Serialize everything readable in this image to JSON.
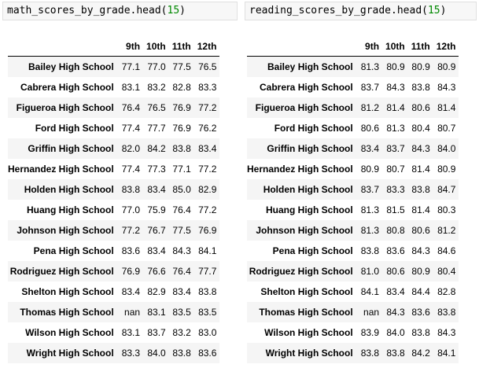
{
  "left": {
    "code_func": "math_scores_by_grade.head(",
    "code_arg": "15",
    "code_close": ")",
    "columns": [
      "9th",
      "10th",
      "11th",
      "12th"
    ],
    "rows": [
      {
        "school": "Bailey High School",
        "values": [
          "77.1",
          "77.0",
          "77.5",
          "76.5"
        ]
      },
      {
        "school": "Cabrera High School",
        "values": [
          "83.1",
          "83.2",
          "82.8",
          "83.3"
        ]
      },
      {
        "school": "Figueroa High School",
        "values": [
          "76.4",
          "76.5",
          "76.9",
          "77.2"
        ]
      },
      {
        "school": "Ford High School",
        "values": [
          "77.4",
          "77.7",
          "76.9",
          "76.2"
        ]
      },
      {
        "school": "Griffin High School",
        "values": [
          "82.0",
          "84.2",
          "83.8",
          "83.4"
        ]
      },
      {
        "school": "Hernandez High School",
        "values": [
          "77.4",
          "77.3",
          "77.1",
          "77.2"
        ]
      },
      {
        "school": "Holden High School",
        "values": [
          "83.8",
          "83.4",
          "85.0",
          "82.9"
        ]
      },
      {
        "school": "Huang High School",
        "values": [
          "77.0",
          "75.9",
          "76.4",
          "77.2"
        ]
      },
      {
        "school": "Johnson High School",
        "values": [
          "77.2",
          "76.7",
          "77.5",
          "76.9"
        ]
      },
      {
        "school": "Pena High School",
        "values": [
          "83.6",
          "83.4",
          "84.3",
          "84.1"
        ]
      },
      {
        "school": "Rodriguez High School",
        "values": [
          "76.9",
          "76.6",
          "76.4",
          "77.7"
        ]
      },
      {
        "school": "Shelton High School",
        "values": [
          "83.4",
          "82.9",
          "83.4",
          "83.8"
        ]
      },
      {
        "school": "Thomas High School",
        "values": [
          "nan",
          "83.1",
          "83.5",
          "83.5"
        ]
      },
      {
        "school": "Wilson High School",
        "values": [
          "83.1",
          "83.7",
          "83.2",
          "83.0"
        ]
      },
      {
        "school": "Wright High School",
        "values": [
          "83.3",
          "84.0",
          "83.8",
          "83.6"
        ]
      }
    ]
  },
  "right": {
    "code_func": "reading_scores_by_grade.head(",
    "code_arg": "15",
    "code_close": ")",
    "columns": [
      "9th",
      "10th",
      "11th",
      "12th"
    ],
    "rows": [
      {
        "school": "Bailey High School",
        "values": [
          "81.3",
          "80.9",
          "80.9",
          "80.9"
        ]
      },
      {
        "school": "Cabrera High School",
        "values": [
          "83.7",
          "84.3",
          "83.8",
          "84.3"
        ]
      },
      {
        "school": "Figueroa High School",
        "values": [
          "81.2",
          "81.4",
          "80.6",
          "81.4"
        ]
      },
      {
        "school": "Ford High School",
        "values": [
          "80.6",
          "81.3",
          "80.4",
          "80.7"
        ]
      },
      {
        "school": "Griffin High School",
        "values": [
          "83.4",
          "83.7",
          "84.3",
          "84.0"
        ]
      },
      {
        "school": "Hernandez High School",
        "values": [
          "80.9",
          "80.7",
          "81.4",
          "80.9"
        ]
      },
      {
        "school": "Holden High School",
        "values": [
          "83.7",
          "83.3",
          "83.8",
          "84.7"
        ]
      },
      {
        "school": "Huang High School",
        "values": [
          "81.3",
          "81.5",
          "81.4",
          "80.3"
        ]
      },
      {
        "school": "Johnson High School",
        "values": [
          "81.3",
          "80.8",
          "80.6",
          "81.2"
        ]
      },
      {
        "school": "Pena High School",
        "values": [
          "83.8",
          "83.6",
          "84.3",
          "84.6"
        ]
      },
      {
        "school": "Rodriguez High School",
        "values": [
          "81.0",
          "80.6",
          "80.9",
          "80.4"
        ]
      },
      {
        "school": "Shelton High School",
        "values": [
          "84.1",
          "83.4",
          "84.4",
          "82.8"
        ]
      },
      {
        "school": "Thomas High School",
        "values": [
          "nan",
          "84.3",
          "83.6",
          "83.8"
        ]
      },
      {
        "school": "Wilson High School",
        "values": [
          "83.9",
          "84.0",
          "83.8",
          "84.3"
        ]
      },
      {
        "school": "Wright High School",
        "values": [
          "83.8",
          "83.8",
          "84.2",
          "84.1"
        ]
      }
    ]
  }
}
